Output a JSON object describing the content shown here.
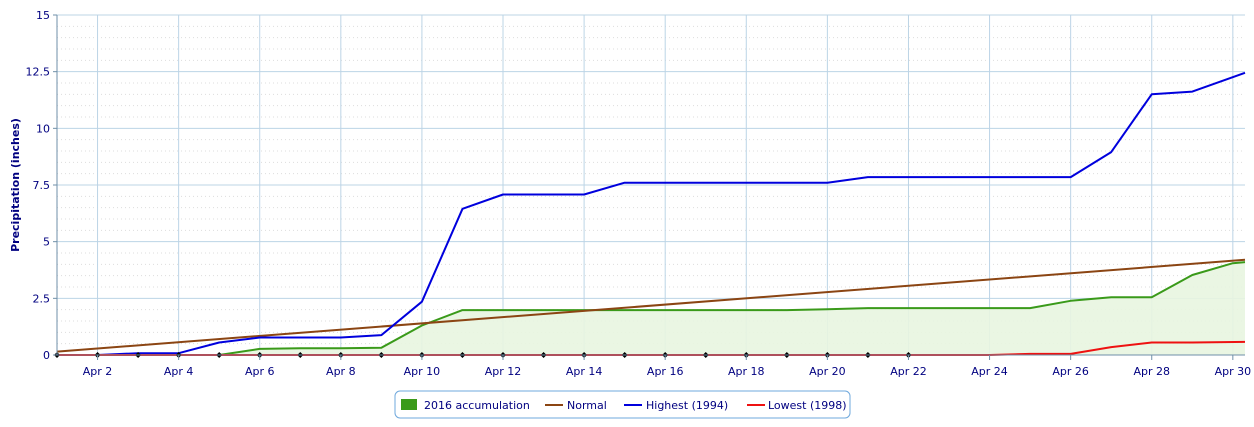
{
  "chart_data": {
    "type": "line",
    "ylabel": "Precipitation (inches)",
    "xlabel": "",
    "ylim": [
      0,
      15
    ],
    "yticks": [
      "0",
      "2.5",
      "5",
      "7.5",
      "10",
      "12.5",
      "15"
    ],
    "xtick_labels": [
      "Apr 2",
      "Apr 4",
      "Apr 6",
      "Apr 8",
      "Apr 10",
      "Apr 12",
      "Apr 14",
      "Apr 16",
      "Apr 18",
      "Apr 20",
      "Apr 22",
      "Apr 24",
      "Apr 26",
      "Apr 28",
      "Apr 30"
    ],
    "xtick_days": [
      2,
      4,
      6,
      8,
      10,
      12,
      14,
      16,
      18,
      20,
      22,
      24,
      26,
      28,
      30
    ],
    "xlim_days": [
      1,
      30.3
    ],
    "grid": true,
    "legend_position": "bottom-center",
    "series": [
      {
        "name": "2016 accumulation",
        "kind": "area",
        "color": "#3a9a1a",
        "fill": "#e8f5e0",
        "x": [
          1,
          2,
          3,
          4,
          5,
          6,
          7,
          8,
          9,
          10,
          11,
          12,
          13,
          14,
          15,
          16,
          17,
          18,
          19,
          20,
          21,
          22,
          23,
          24,
          25,
          26,
          27,
          28,
          29,
          30,
          30.3
        ],
        "y": [
          0,
          0,
          0,
          0,
          0,
          0.27,
          0.3,
          0.3,
          0.32,
          1.3,
          1.98,
          1.98,
          1.98,
          1.98,
          1.98,
          1.98,
          1.98,
          1.98,
          1.98,
          2.02,
          2.07,
          2.07,
          2.07,
          2.07,
          2.07,
          2.39,
          2.55,
          2.55,
          3.53,
          4.05,
          4.1
        ]
      },
      {
        "name": "Normal",
        "kind": "line",
        "color": "#8b4513",
        "x": [
          1,
          30.3
        ],
        "y": [
          0.15,
          4.2
        ]
      },
      {
        "name": "Highest (1994)",
        "kind": "line",
        "color": "#0000dd",
        "x": [
          1,
          2,
          3,
          4,
          5,
          6,
          7,
          8,
          9,
          10,
          11,
          12,
          13,
          14,
          15,
          16,
          17,
          18,
          19,
          20,
          21,
          22,
          23,
          24,
          25,
          26,
          27,
          28,
          29,
          30.3
        ],
        "y": [
          0,
          0,
          0.08,
          0.08,
          0.55,
          0.77,
          0.77,
          0.77,
          0.88,
          2.35,
          6.45,
          7.08,
          7.08,
          7.08,
          7.6,
          7.6,
          7.6,
          7.6,
          7.6,
          7.6,
          7.85,
          7.85,
          7.85,
          7.85,
          7.85,
          7.85,
          8.95,
          11.5,
          11.62,
          12.45
        ]
      },
      {
        "name": "Lowest (1998)",
        "kind": "line",
        "color": "#ee1111",
        "x": [
          1,
          2,
          3,
          4,
          5,
          6,
          7,
          8,
          9,
          10,
          11,
          12,
          13,
          14,
          15,
          16,
          17,
          18,
          19,
          20,
          21,
          22,
          23,
          24,
          25,
          26,
          27,
          28,
          29,
          30.3
        ],
        "y": [
          0,
          0,
          0,
          0,
          0,
          0,
          0,
          0,
          0,
          0,
          0,
          0,
          0,
          0,
          0,
          0,
          0,
          0,
          0,
          0,
          0,
          0,
          0,
          0,
          0.05,
          0.05,
          0.35,
          0.55,
          0.55,
          0.58
        ]
      }
    ],
    "markers": {
      "color": "#000000",
      "x": [
        1,
        2,
        3,
        4,
        5,
        6,
        7,
        8,
        9,
        10,
        11,
        12,
        13,
        14,
        15,
        16,
        17,
        18,
        19,
        20,
        21,
        22
      ],
      "y": [
        0,
        0,
        0,
        0,
        0,
        0,
        0,
        0,
        0,
        0,
        0,
        0,
        0,
        0,
        0,
        0,
        0,
        0,
        0,
        0,
        0,
        0
      ]
    }
  }
}
